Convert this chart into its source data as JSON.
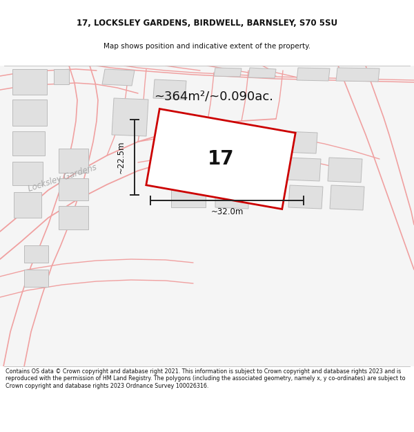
{
  "title_line1": "17, LOCKSLEY GARDENS, BIRDWELL, BARNSLEY, S70 5SU",
  "title_line2": "Map shows position and indicative extent of the property.",
  "area_text": "~364m²/~0.090ac.",
  "property_number": "17",
  "dim_height": "~22.5m",
  "dim_width": "~32.0m",
  "street_label": "Locksley Gardens",
  "footer_text": "Contains OS data © Crown copyright and database right 2021. This information is subject to Crown copyright and database rights 2023 and is reproduced with the permission of HM Land Registry. The polygons (including the associated geometry, namely x, y co-ordinates) are subject to Crown copyright and database rights 2023 Ordnance Survey 100026316.",
  "bg_color": "#ffffff",
  "map_bg": "#f5f5f5",
  "building_fill": "#e0e0e0",
  "building_edge": "#bbbbbb",
  "road_color": "#f0a0a0",
  "property_outline_color": "#cc0000",
  "dim_line_color": "#222222",
  "title_color": "#111111",
  "footer_color": "#111111",
  "street_label_color": "#aaaaaa",
  "map_border_color": "#888888"
}
